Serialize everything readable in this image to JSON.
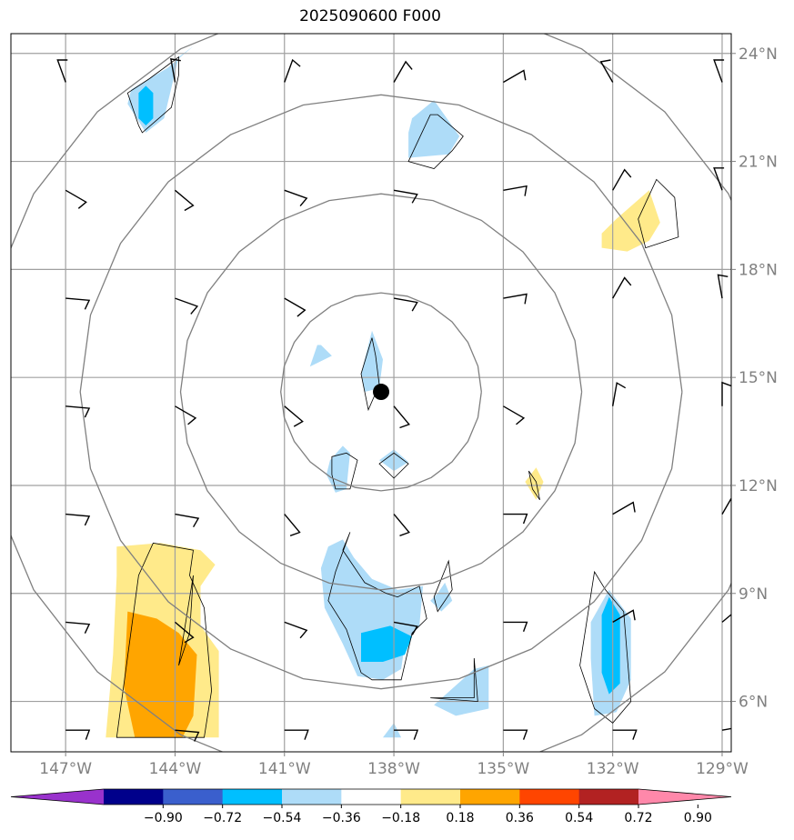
{
  "title": "2025090600 F000",
  "map": {
    "lon_range": [
      -148.5,
      -128.75
    ],
    "lat_range": [
      4.6,
      24.55
    ],
    "lon_ticks": [
      {
        "value": -147,
        "label": "147°W"
      },
      {
        "value": -144,
        "label": "144°W"
      },
      {
        "value": -141,
        "label": "141°W"
      },
      {
        "value": -138,
        "label": "138°W"
      },
      {
        "value": -135,
        "label": "135°W"
      },
      {
        "value": -132,
        "label": "132°W"
      },
      {
        "value": -129,
        "label": "129°W"
      }
    ],
    "lat_ticks": [
      {
        "value": 6,
        "label": "6°N"
      },
      {
        "value": 9,
        "label": "9°N"
      },
      {
        "value": 12,
        "label": "12°N"
      },
      {
        "value": 15,
        "label": "15°N"
      },
      {
        "value": 18,
        "label": "18°N"
      },
      {
        "value": 21,
        "label": "21°N"
      },
      {
        "value": 24,
        "label": "24°N"
      }
    ],
    "grid": true,
    "storm_center": {
      "lon": -138.35,
      "lat": 14.6
    },
    "range_rings_deg": [
      2.75,
      5.5,
      8.25,
      11.0
    ],
    "shading": [
      {
        "level": "neg_018_036",
        "color": "#aedcf8",
        "polygons": [
          [
            [
              -145.2,
              23.0
            ],
            [
              -144.2,
              23.6
            ],
            [
              -143.5,
              24.2
            ],
            [
              -143.9,
              23.9
            ],
            [
              -144.3,
              22.2
            ],
            [
              -144.8,
              21.8
            ],
            [
              -145.3,
              22.6
            ]
          ],
          [
            [
              -137.5,
              22.2
            ],
            [
              -136.9,
              22.7
            ],
            [
              -136.2,
              21.7
            ],
            [
              -136.5,
              21.2
            ],
            [
              -137.6,
              21.1
            ],
            [
              -137.6,
              21.8
            ]
          ],
          [
            [
              -138.9,
              15.1
            ],
            [
              -138.6,
              16.3
            ],
            [
              -138.3,
              15.5
            ],
            [
              -138.4,
              14.7
            ],
            [
              -138.8,
              14.6
            ]
          ],
          [
            [
              -140.0,
              15.9
            ],
            [
              -139.7,
              15.6
            ],
            [
              -140.3,
              15.3
            ],
            [
              -140.1,
              15.9
            ]
          ],
          [
            [
              -139.75,
              12.7
            ],
            [
              -139.4,
              13.1
            ],
            [
              -139.2,
              12.9
            ],
            [
              -139.3,
              11.9
            ],
            [
              -139.6,
              11.8
            ],
            [
              -139.85,
              12.3
            ]
          ],
          [
            [
              -138.4,
              12.7
            ],
            [
              -138.0,
              13.0
            ],
            [
              -137.6,
              12.65
            ],
            [
              -138.0,
              12.4
            ]
          ],
          [
            [
              -139.8,
              10.3
            ],
            [
              -139.4,
              10.5
            ],
            [
              -139.1,
              10.0
            ],
            [
              -138.6,
              9.4
            ],
            [
              -137.9,
              9.1
            ],
            [
              -137.2,
              9.2
            ],
            [
              -137.3,
              8.1
            ],
            [
              -137.7,
              7.6
            ],
            [
              -137.8,
              6.9
            ],
            [
              -138.3,
              6.6
            ],
            [
              -139.0,
              6.7
            ],
            [
              -139.4,
              7.6
            ],
            [
              -139.9,
              8.6
            ],
            [
              -140.0,
              9.7
            ]
          ],
          [
            [
              -136.8,
              9.0
            ],
            [
              -136.6,
              9.3
            ],
            [
              -136.4,
              8.8
            ],
            [
              -136.7,
              8.5
            ],
            [
              -137.0,
              8.8
            ]
          ],
          [
            [
              -136.9,
              5.9
            ],
            [
              -135.8,
              6.9
            ],
            [
              -135.4,
              7.0
            ],
            [
              -135.4,
              5.8
            ],
            [
              -136.3,
              5.6
            ]
          ],
          [
            [
              -138.3,
              5.0
            ],
            [
              -138.0,
              5.4
            ],
            [
              -137.8,
              5.0
            ]
          ],
          [
            [
              -132.6,
              8.2
            ],
            [
              -132.1,
              9.1
            ],
            [
              -131.5,
              8.3
            ],
            [
              -131.5,
              6.6
            ],
            [
              -131.9,
              5.7
            ],
            [
              -132.5,
              5.6
            ],
            [
              -132.6,
              7.2
            ]
          ]
        ]
      },
      {
        "level": "neg_036_054",
        "color": "#00bfff",
        "polygons": [
          [
            [
              -145.0,
              22.9
            ],
            [
              -144.8,
              23.1
            ],
            [
              -144.6,
              22.9
            ],
            [
              -144.6,
              22.2
            ],
            [
              -144.8,
              22.0
            ],
            [
              -145.0,
              22.2
            ]
          ],
          [
            [
              -138.9,
              7.9
            ],
            [
              -138.1,
              8.1
            ],
            [
              -137.5,
              7.8
            ],
            [
              -137.7,
              7.3
            ],
            [
              -138.3,
              7.1
            ],
            [
              -138.9,
              7.1
            ]
          ],
          [
            [
              -132.3,
              8.4
            ],
            [
              -132.1,
              8.9
            ],
            [
              -131.8,
              8.4
            ],
            [
              -131.8,
              6.5
            ],
            [
              -132.1,
              6.2
            ],
            [
              -132.3,
              6.8
            ]
          ]
        ]
      },
      {
        "level": "pos_018_036",
        "color": "#ffea8a",
        "polygons": [
          [
            [
              -145.6,
              10.3
            ],
            [
              -144.4,
              10.4
            ],
            [
              -143.3,
              10.2
            ],
            [
              -142.9,
              9.8
            ],
            [
              -143.3,
              9.2
            ],
            [
              -143.3,
              8.1
            ],
            [
              -142.8,
              7.4
            ],
            [
              -142.8,
              5.0
            ],
            [
              -145.9,
              5.0
            ],
            [
              -145.7,
              7.3
            ],
            [
              -145.6,
              9.5
            ]
          ],
          [
            [
              -131.9,
              19.4
            ],
            [
              -131.0,
              20.2
            ],
            [
              -130.7,
              19.3
            ],
            [
              -131.0,
              18.8
            ],
            [
              -131.6,
              18.5
            ],
            [
              -132.3,
              18.6
            ],
            [
              -132.3,
              19.0
            ]
          ],
          [
            [
              -134.4,
              12.1
            ],
            [
              -134.1,
              12.5
            ],
            [
              -133.9,
              12.1
            ],
            [
              -134.1,
              11.6
            ]
          ]
        ]
      },
      {
        "level": "pos_036_054",
        "color": "#ffa500",
        "polygons": [
          [
            [
              -145.3,
              8.5
            ],
            [
              -144.5,
              8.3
            ],
            [
              -143.9,
              7.9
            ],
            [
              -143.4,
              7.3
            ],
            [
              -143.5,
              5.6
            ],
            [
              -143.8,
              5.0
            ],
            [
              -145.1,
              5.0
            ],
            [
              -145.4,
              6.4
            ]
          ]
        ]
      }
    ],
    "contours": [
      [
        [
          -145.3,
          22.9
        ],
        [
          -144.7,
          23.3
        ],
        [
          -143.9,
          23.9
        ],
        [
          -143.9,
          23.4
        ],
        [
          -144.1,
          22.5
        ],
        [
          -144.9,
          21.8
        ],
        [
          -145.0,
          22.0
        ]
      ],
      [
        [
          -137.6,
          21.0
        ],
        [
          -137.0,
          22.3
        ],
        [
          -136.8,
          22.3
        ],
        [
          -136.1,
          21.7
        ],
        [
          -136.4,
          21.3
        ],
        [
          -136.9,
          20.8
        ]
      ],
      [
        [
          -131.3,
          19.4
        ],
        [
          -130.8,
          20.5
        ],
        [
          -130.3,
          20.0
        ],
        [
          -130.2,
          18.9
        ],
        [
          -131.1,
          18.6
        ]
      ],
      [
        [
          -138.9,
          15.1
        ],
        [
          -138.6,
          16.1
        ],
        [
          -138.5,
          15.6
        ],
        [
          -138.4,
          14.8
        ],
        [
          -138.7,
          14.1
        ]
      ],
      [
        [
          -139.7,
          12.8
        ],
        [
          -139.3,
          12.9
        ],
        [
          -139.0,
          12.7
        ],
        [
          -139.2,
          11.9
        ],
        [
          -139.6,
          11.9
        ],
        [
          -139.7,
          12.3
        ]
      ],
      [
        [
          -138.4,
          12.6
        ],
        [
          -138.0,
          12.9
        ],
        [
          -137.6,
          12.6
        ],
        [
          -138.0,
          12.2
        ]
      ],
      [
        [
          -139.2,
          10.7
        ],
        [
          -139.4,
          10.2
        ],
        [
          -138.8,
          9.3
        ],
        [
          -138.2,
          9.0
        ],
        [
          -137.9,
          8.9
        ],
        [
          -137.3,
          9.2
        ],
        [
          -137.1,
          8.3
        ],
        [
          -137.5,
          7.9
        ],
        [
          -137.8,
          6.6
        ],
        [
          -138.6,
          6.6
        ],
        [
          -138.9,
          6.8
        ],
        [
          -139.3,
          8.0
        ],
        [
          -139.8,
          8.8
        ],
        [
          -139.6,
          9.6
        ]
      ],
      [
        [
          -136.8,
          8.5
        ],
        [
          -136.4,
          9.1
        ],
        [
          -136.5,
          9.9
        ],
        [
          -136.9,
          8.9
        ]
      ],
      [
        [
          -137.0,
          6.1
        ],
        [
          -135.7,
          6.0
        ],
        [
          -135.8,
          7.2
        ],
        [
          -135.8,
          6.1
        ]
      ],
      [
        [
          -145.6,
          5.0
        ],
        [
          -145.0,
          9.5
        ],
        [
          -144.6,
          10.4
        ],
        [
          -143.5,
          10.2
        ],
        [
          -143.6,
          9.5
        ],
        [
          -143.2,
          8.6
        ],
        [
          -143.0,
          6.3
        ],
        [
          -143.2,
          5.0
        ]
      ],
      [
        [
          -143.9,
          7.0
        ],
        [
          -143.6,
          7.9
        ],
        [
          -143.5,
          9.5
        ]
      ],
      [
        [
          -132.5,
          9.6
        ],
        [
          -132.2,
          9.1
        ],
        [
          -131.7,
          8.5
        ],
        [
          -131.5,
          6.0
        ],
        [
          -132.0,
          5.4
        ],
        [
          -132.5,
          5.8
        ],
        [
          -132.9,
          7.0
        ]
      ],
      [
        [
          -134.3,
          12.4
        ],
        [
          -134.1,
          12.1
        ],
        [
          -134.0,
          11.6
        ],
        [
          -134.2,
          11.9
        ]
      ]
    ],
    "barbs": [
      {
        "lon": -147,
        "lat": 23.2,
        "dir": 340,
        "speed": 10
      },
      {
        "lon": -144,
        "lat": 23.2,
        "dir": 350,
        "speed": 10
      },
      {
        "lon": -141,
        "lat": 23.2,
        "dir": 20,
        "speed": 10
      },
      {
        "lon": -138,
        "lat": 23.2,
        "dir": 30,
        "speed": 10
      },
      {
        "lon": -135,
        "lat": 23.2,
        "dir": 60,
        "speed": 10
      },
      {
        "lon": -132,
        "lat": 23.2,
        "dir": 330,
        "speed": 10
      },
      {
        "lon": -129,
        "lat": 23.2,
        "dir": 340,
        "speed": 10
      },
      {
        "lon": -147,
        "lat": 20.2,
        "dir": 120,
        "speed": 10
      },
      {
        "lon": -144,
        "lat": 20.2,
        "dir": 130,
        "speed": 10
      },
      {
        "lon": -141,
        "lat": 20.2,
        "dir": 110,
        "speed": 10
      },
      {
        "lon": -138,
        "lat": 20.2,
        "dir": 100,
        "speed": 10
      },
      {
        "lon": -135,
        "lat": 20.2,
        "dir": 80,
        "speed": 10
      },
      {
        "lon": -132,
        "lat": 20.2,
        "dir": 30,
        "speed": 10
      },
      {
        "lon": -129,
        "lat": 20.2,
        "dir": 340,
        "speed": 10
      },
      {
        "lon": -147,
        "lat": 17.2,
        "dir": 95,
        "speed": 10
      },
      {
        "lon": -144,
        "lat": 17.2,
        "dir": 110,
        "speed": 10
      },
      {
        "lon": -141,
        "lat": 17.2,
        "dir": 120,
        "speed": 10
      },
      {
        "lon": -138,
        "lat": 17.2,
        "dir": 100,
        "speed": 10
      },
      {
        "lon": -135,
        "lat": 17.2,
        "dir": 80,
        "speed": 10
      },
      {
        "lon": -132,
        "lat": 17.2,
        "dir": 30,
        "speed": 10
      },
      {
        "lon": -129,
        "lat": 17.2,
        "dir": 350,
        "speed": 10
      },
      {
        "lon": -147,
        "lat": 14.2,
        "dir": 95,
        "speed": 10
      },
      {
        "lon": -144,
        "lat": 14.2,
        "dir": 120,
        "speed": 10
      },
      {
        "lon": -141,
        "lat": 14.2,
        "dir": 130,
        "speed": 10
      },
      {
        "lon": -138,
        "lat": 14.2,
        "dir": 140,
        "speed": 10
      },
      {
        "lon": -135,
        "lat": 14.2,
        "dir": 120,
        "speed": 10
      },
      {
        "lon": -132,
        "lat": 14.2,
        "dir": 10,
        "speed": 10
      },
      {
        "lon": -129,
        "lat": 14.2,
        "dir": 0,
        "speed": 10
      },
      {
        "lon": -147,
        "lat": 11.2,
        "dir": 95,
        "speed": 10
      },
      {
        "lon": -144,
        "lat": 11.2,
        "dir": 100,
        "speed": 10
      },
      {
        "lon": -141,
        "lat": 11.2,
        "dir": 140,
        "speed": 10
      },
      {
        "lon": -138,
        "lat": 11.2,
        "dir": 140,
        "speed": 10
      },
      {
        "lon": -135,
        "lat": 11.2,
        "dir": 90,
        "speed": 10
      },
      {
        "lon": -132,
        "lat": 11.2,
        "dir": 60,
        "speed": 10
      },
      {
        "lon": -129,
        "lat": 11.2,
        "dir": 30,
        "speed": 10
      },
      {
        "lon": -147,
        "lat": 8.2,
        "dir": 95,
        "speed": 10
      },
      {
        "lon": -144,
        "lat": 8.2,
        "dir": 130,
        "speed": 10
      },
      {
        "lon": -141,
        "lat": 8.2,
        "dir": 110,
        "speed": 10
      },
      {
        "lon": -138,
        "lat": 8.2,
        "dir": 100,
        "speed": 10
      },
      {
        "lon": -135,
        "lat": 8.2,
        "dir": 90,
        "speed": 10
      },
      {
        "lon": -132,
        "lat": 8.2,
        "dir": 60,
        "speed": 10
      },
      {
        "lon": -129,
        "lat": 8.2,
        "dir": 50,
        "speed": 10
      },
      {
        "lon": -147,
        "lat": 5.2,
        "dir": 90,
        "speed": 10
      },
      {
        "lon": -144,
        "lat": 5.2,
        "dir": 95,
        "speed": 10
      },
      {
        "lon": -141,
        "lat": 5.2,
        "dir": 90,
        "speed": 10
      },
      {
        "lon": -138,
        "lat": 5.2,
        "dir": 90,
        "speed": 10
      },
      {
        "lon": -135,
        "lat": 5.2,
        "dir": 90,
        "speed": 10
      },
      {
        "lon": -132,
        "lat": 5.2,
        "dir": 90,
        "speed": 10
      },
      {
        "lon": -129,
        "lat": 5.2,
        "dir": 80,
        "speed": 10
      }
    ]
  },
  "colorbar": {
    "colors": [
      "#9932cc",
      "#00008b",
      "#3a5fcd",
      "#00bfff",
      "#aedcf8",
      "#ffffff",
      "#ffea8a",
      "#ffa500",
      "#ff4500",
      "#b22222",
      "#ff88aa"
    ],
    "labels": [
      "−0.90",
      "−0.72",
      "−0.54",
      "−0.36",
      "−0.18",
      "0.18",
      "0.36",
      "0.54",
      "0.72",
      "0.90"
    ]
  }
}
